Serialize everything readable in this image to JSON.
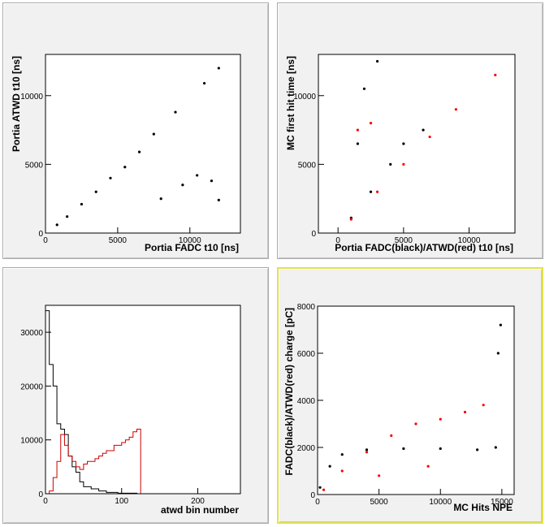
{
  "chart_data": [
    {
      "type": "scatter",
      "title": "",
      "xlabel": "Portia FADC t10 [ns]",
      "ylabel": "Portia ATWD t10 [ns]",
      "xlim": [
        0,
        13500
      ],
      "ylim": [
        0,
        13000
      ],
      "xticks": [
        0,
        5000,
        10000
      ],
      "yticks": [
        0,
        5000,
        10000
      ],
      "grid": false,
      "series": [
        {
          "color": "#000000",
          "points": [
            [
              800,
              600
            ],
            [
              1500,
              1200
            ],
            [
              2500,
              2100
            ],
            [
              3500,
              3000
            ],
            [
              4500,
              4000
            ],
            [
              5500,
              4800
            ],
            [
              6500,
              5900
            ],
            [
              7500,
              7200
            ],
            [
              9000,
              8800
            ],
            [
              11000,
              10900
            ],
            [
              12000,
              12000
            ],
            [
              8000,
              2500
            ],
            [
              9500,
              3500
            ],
            [
              10500,
              4200
            ],
            [
              11500,
              3800
            ],
            [
              12000,
              2400
            ]
          ]
        }
      ]
    },
    {
      "type": "scatter",
      "title": "",
      "xlabel": "Portia FADC(black)/ATWD(red) t10 [ns]",
      "ylabel": "MC first hit time [ns]",
      "xlim": [
        -1500,
        13500
      ],
      "ylim": [
        0,
        13000
      ],
      "xticks": [
        0,
        5000,
        10000
      ],
      "yticks": [
        0,
        5000,
        10000
      ],
      "grid": false,
      "series": [
        {
          "name": "FADC",
          "color": "#000000",
          "points": [
            [
              1000,
              1100
            ],
            [
              2500,
              3000
            ],
            [
              4000,
              5000
            ],
            [
              5000,
              6500
            ],
            [
              6500,
              7500
            ],
            [
              2000,
              10500
            ],
            [
              3000,
              12500
            ],
            [
              1500,
              6500
            ]
          ]
        },
        {
          "name": "ATWD",
          "color": "#ff0000",
          "points": [
            [
              1000,
              1000
            ],
            [
              3000,
              3000
            ],
            [
              5000,
              5000
            ],
            [
              7000,
              7000
            ],
            [
              9000,
              9000
            ],
            [
              12000,
              11500
            ],
            [
              1500,
              7500
            ],
            [
              2500,
              8000
            ]
          ]
        }
      ]
    },
    {
      "type": "histogram",
      "title": "",
      "xlabel": "atwd bin number",
      "ylabel": "",
      "xlim": [
        0,
        256
      ],
      "ylim": [
        0,
        35000
      ],
      "xticks": [
        0,
        100,
        200
      ],
      "yticks": [
        0,
        10000,
        20000,
        30000
      ],
      "grid": false,
      "series": [
        {
          "color": "#000000",
          "bins": [
            [
              0,
              5,
              34000
            ],
            [
              5,
              10,
              24000
            ],
            [
              10,
              15,
              20000
            ],
            [
              15,
              20,
              13000
            ],
            [
              20,
              25,
              12000
            ],
            [
              25,
              30,
              11000
            ],
            [
              30,
              35,
              7000
            ],
            [
              35,
              40,
              5000
            ],
            [
              40,
              45,
              4000
            ],
            [
              45,
              50,
              2200
            ],
            [
              50,
              60,
              1300
            ],
            [
              60,
              70,
              900
            ],
            [
              70,
              80,
              500
            ],
            [
              80,
              95,
              250
            ],
            [
              95,
              120,
              100
            ]
          ]
        },
        {
          "color": "#cc0000",
          "bins": [
            [
              5,
              10,
              500
            ],
            [
              10,
              15,
              3000
            ],
            [
              15,
              20,
              6000
            ],
            [
              20,
              25,
              11000
            ],
            [
              25,
              30,
              9000
            ],
            [
              30,
              35,
              7000
            ],
            [
              35,
              40,
              6000
            ],
            [
              40,
              45,
              5000
            ],
            [
              45,
              50,
              4500
            ],
            [
              50,
              55,
              5500
            ],
            [
              55,
              60,
              6000
            ],
            [
              60,
              65,
              6000
            ],
            [
              65,
              70,
              6500
            ],
            [
              70,
              75,
              7000
            ],
            [
              75,
              80,
              7500
            ],
            [
              80,
              85,
              8000
            ],
            [
              85,
              90,
              8000
            ],
            [
              90,
              95,
              9000
            ],
            [
              95,
              100,
              9000
            ],
            [
              100,
              105,
              9500
            ],
            [
              105,
              110,
              10000
            ],
            [
              110,
              115,
              10500
            ],
            [
              115,
              120,
              11500
            ],
            [
              120,
              125,
              12000
            ]
          ]
        }
      ]
    },
    {
      "type": "scatter",
      "title": "",
      "xlabel": "MC Hits NPE",
      "ylabel": "FADC(black)/ATWD(red) charge [pC]",
      "xlim": [
        0,
        16000
      ],
      "ylim": [
        0,
        8000
      ],
      "xticks": [
        0,
        5000,
        10000,
        15000
      ],
      "yticks": [
        0,
        2000,
        4000,
        6000,
        8000
      ],
      "grid": false,
      "series": [
        {
          "name": "FADC",
          "color": "#000000",
          "points": [
            [
              200,
              300
            ],
            [
              1000,
              1200
            ],
            [
              2000,
              1700
            ],
            [
              4000,
              1900
            ],
            [
              7000,
              1950
            ],
            [
              10000,
              1950
            ],
            [
              13000,
              1900
            ],
            [
              14500,
              2000
            ],
            [
              14700,
              6000
            ],
            [
              14900,
              7200
            ]
          ]
        },
        {
          "name": "ATWD",
          "color": "#ff0000",
          "points": [
            [
              500,
              200
            ],
            [
              2000,
              1000
            ],
            [
              4000,
              1800
            ],
            [
              6000,
              2500
            ],
            [
              8000,
              3000
            ],
            [
              10000,
              3200
            ],
            [
              12000,
              3500
            ],
            [
              13500,
              3800
            ],
            [
              5000,
              800
            ],
            [
              9000,
              1200
            ]
          ]
        }
      ]
    }
  ]
}
